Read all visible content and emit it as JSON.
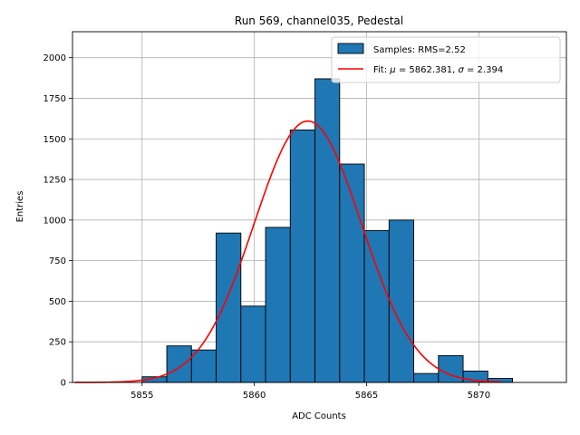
{
  "chart_data": {
    "type": "bar",
    "title": "Run 569, channel035, Pedestal",
    "xlabel": "ADC Counts",
    "ylabel": "Entries",
    "xlim": [
      5851.9,
      5873.9
    ],
    "ylim": [
      0,
      2160
    ],
    "grid": true,
    "x_ticks": [
      5855,
      5860,
      5865,
      5870
    ],
    "x_tick_labels": [
      "5855",
      "5860",
      "5865",
      "5870"
    ],
    "y_ticks": [
      0,
      250,
      500,
      750,
      1000,
      1250,
      1500,
      1750,
      2000
    ],
    "y_tick_labels": [
      "0",
      "250",
      "500",
      "750",
      "1000",
      "1250",
      "1500",
      "1750",
      "2000"
    ],
    "histogram": {
      "name": "Samples",
      "bin_width": 1.1,
      "color": "#1f77b4",
      "edge_color": "#000000",
      "bins": [
        {
          "left": 5855.0,
          "value": 35
        },
        {
          "left": 5856.1,
          "value": 225
        },
        {
          "left": 5857.2,
          "value": 200
        },
        {
          "left": 5858.3,
          "value": 920
        },
        {
          "left": 5859.4,
          "value": 470
        },
        {
          "left": 5860.5,
          "value": 955
        },
        {
          "left": 5861.6,
          "value": 1555
        },
        {
          "left": 5862.7,
          "value": 1870
        },
        {
          "left": 5863.8,
          "value": 1345
        },
        {
          "left": 5864.9,
          "value": 935
        },
        {
          "left": 5866.0,
          "value": 1000
        },
        {
          "left": 5867.1,
          "value": 55
        },
        {
          "left": 5868.2,
          "value": 165
        },
        {
          "left": 5869.3,
          "value": 70
        },
        {
          "left": 5870.4,
          "value": 25
        }
      ]
    },
    "fit": {
      "name": "Fit",
      "mu": 5862.381,
      "sigma": 2.394,
      "amplitude": 1610,
      "x_range": [
        5852.0,
        5871.0
      ],
      "color": "#ff0000"
    },
    "legend": {
      "position": "top-right",
      "entries": [
        {
          "label": "Samples: RMS=2.52",
          "kind": "patch"
        },
        {
          "label_parts": [
            "Fit: ",
            "μ",
            " = 5862.381, ",
            "σ",
            " = 2.394"
          ],
          "kind": "line"
        }
      ]
    }
  }
}
